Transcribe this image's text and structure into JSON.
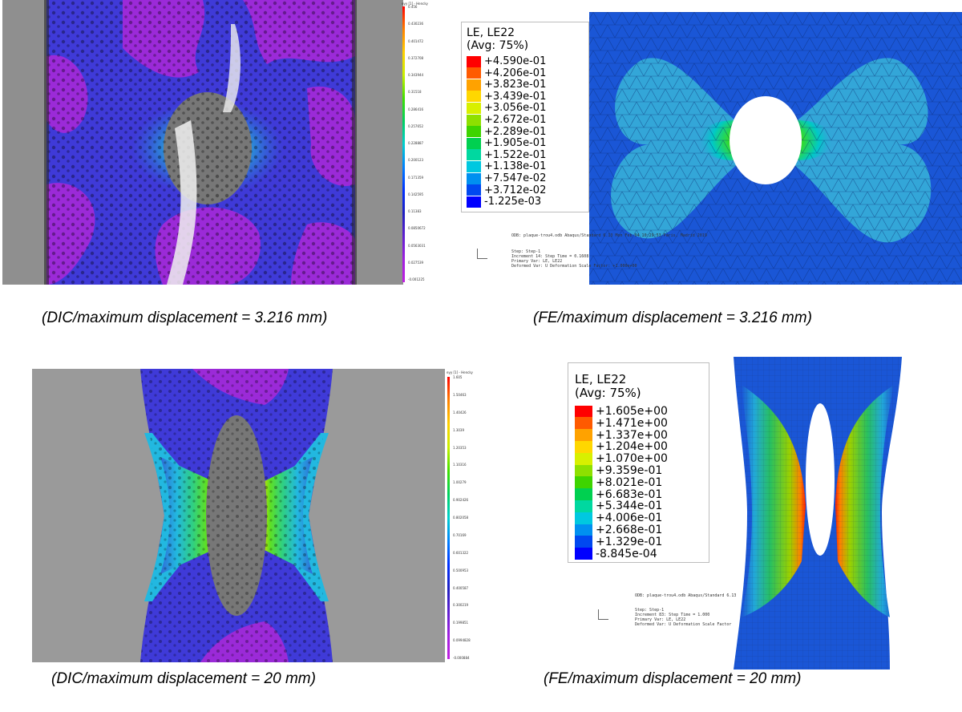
{
  "captions": {
    "dic_top": "(DIC/maximum displacement = 3.216 mm)",
    "fe_top": "(FE/maximum displacement = 3.216 mm)",
    "dic_bottom": "(DIC/maximum displacement = 20 mm)",
    "fe_bottom": "(FE/maximum displacement = 20 mm)"
  },
  "fe_top": {
    "legend_title_1": "LE, LE22",
    "legend_title_2": "(Avg: 75%)",
    "legend_values": [
      "+4.590e-01",
      "+4.206e-01",
      "+3.823e-01",
      "+3.439e-01",
      "+3.056e-01",
      "+2.672e-01",
      "+2.289e-01",
      "+1.905e-01",
      "+1.522e-01",
      "+1.138e-01",
      "+7.547e-02",
      "+3.712e-02",
      "-1.225e-03"
    ],
    "legend_colors": [
      "#ff0000",
      "#ff5a00",
      "#ffa200",
      "#ffd700",
      "#d8f000",
      "#8ee000",
      "#3ed400",
      "#00d050",
      "#00d8a0",
      "#00c8e0",
      "#0090f0",
      "#0048f0",
      "#0000ff"
    ],
    "odb_line": "ODB: plaque-trou4.odb    Abaqus/Standard 6.13    Mon Feb 04 10:29:53 Paris, Madrid 2019",
    "step_lines": [
      "Step: Step-1",
      "Increment     14: Step Time =    0.1608",
      "Primary Var: LE, LE22",
      "Deformed Var: U   Deformation Scale Factor: +1.000e+00"
    ]
  },
  "fe_bottom": {
    "legend_title_1": "LE, LE22",
    "legend_title_2": "(Avg: 75%)",
    "legend_values": [
      "+1.605e+00",
      "+1.471e+00",
      "+1.337e+00",
      "+1.204e+00",
      "+1.070e+00",
      "+9.359e-01",
      "+8.021e-01",
      "+6.683e-01",
      "+5.344e-01",
      "+4.006e-01",
      "+2.668e-01",
      "+1.329e-01",
      "-8.845e-04"
    ],
    "legend_colors": [
      "#ff0000",
      "#ff5a00",
      "#ffa200",
      "#ffd700",
      "#d8f000",
      "#8ee000",
      "#3ed400",
      "#00d050",
      "#00d8a0",
      "#00c8e0",
      "#0090f0",
      "#0048f0",
      "#0000ff"
    ],
    "odb_line": "ODB: plaque-trou4.odb    Abaqus/Standard 6.13",
    "step_lines": [
      "Step: Step-1",
      "Increment     83: Step Time =    1.000",
      "Primary Var: LE, LE22",
      "Deformed Var: U   Deformation Scale Factor"
    ]
  },
  "dic_top": {
    "bar_title": "eyy [1] - Hencky",
    "ticks": [
      "0.456",
      "0.430236",
      "0.401472",
      "0.372708",
      "0.343944",
      "0.31518",
      "0.286416",
      "0.257652",
      "0.228887",
      "0.200123",
      "0.171359",
      "0.142595",
      "0.11383",
      "0.0850672",
      "0.0563031",
      "0.027539",
      "-0.001225"
    ]
  },
  "dic_bottom": {
    "bar_title": "eyy [1] - Hencky",
    "ticks": [
      "1.605",
      "1.50463",
      "1.40426",
      "1.3039",
      "1.20353",
      "1.10316",
      "1.00279",
      "0.902426",
      "0.802058",
      "0.70169",
      "0.601322",
      "0.500953",
      "0.400587",
      "0.300219",
      "0.199851",
      "0.0994828",
      "-0.000884"
    ]
  },
  "colors": {
    "fe_blue": "#1a56d6",
    "fe_lobe": "#33a6d8",
    "dic_purple": "#9b2ad8",
    "dic_blue": "#3f3ad8",
    "dic_gray": "#9a9a9a"
  }
}
